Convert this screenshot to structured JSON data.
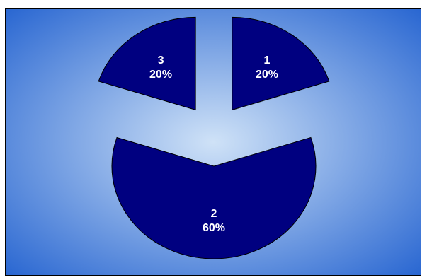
{
  "chart_data": {
    "type": "pie",
    "exploded": true,
    "title": "",
    "labels": [
      "1",
      "2",
      "3"
    ],
    "values": [
      20,
      60,
      20
    ],
    "percent_labels": [
      "20%",
      "60%",
      "20%"
    ],
    "slice_color": "#000080",
    "background_edge_color": "#1f5fcf",
    "background_center_color": "#cfe2f7",
    "legend": false
  }
}
